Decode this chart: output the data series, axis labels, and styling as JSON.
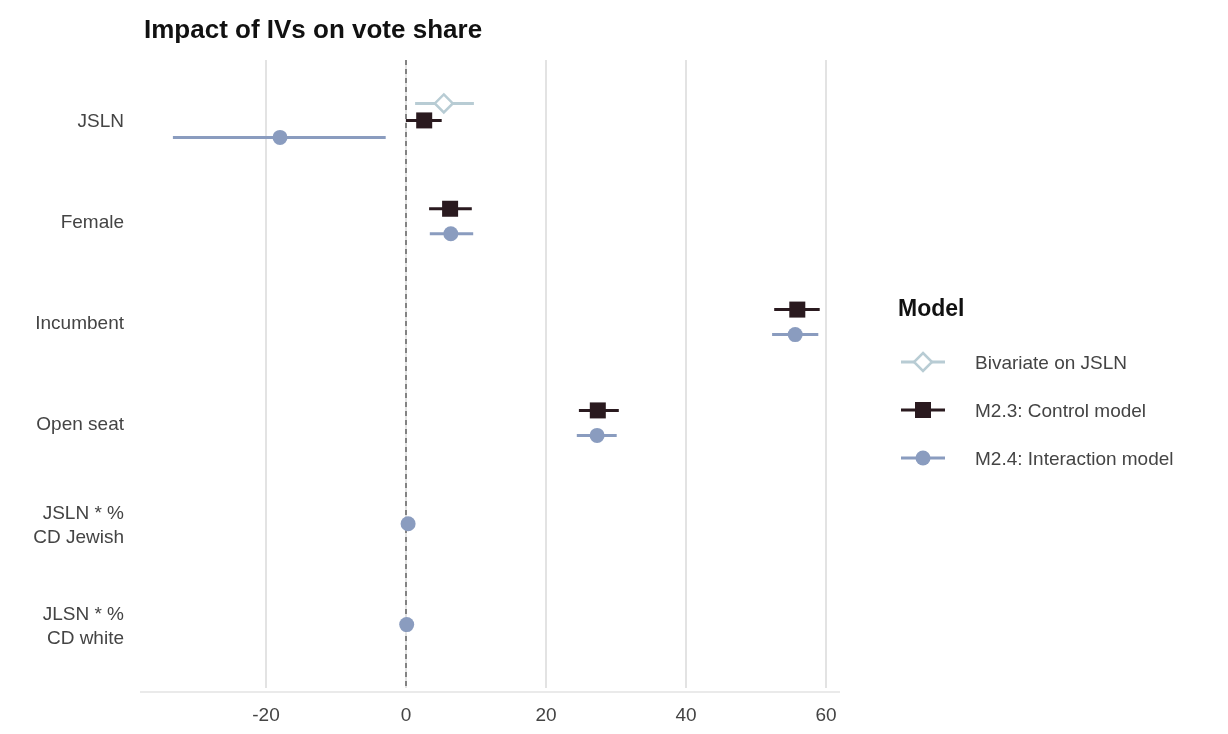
{
  "chart_data": {
    "type": "scatter",
    "title": "Impact of IVs on vote share",
    "orientation": "horizontal",
    "categories": [
      "JSLN",
      "Female",
      "Incumbent",
      "Open seat",
      "JSLN * % CD Jewish",
      "JLSN * % CD white"
    ],
    "series": [
      {
        "name": "Bivariate on JSLN",
        "color": "#b8ccd4",
        "marker": "diamond",
        "values": [
          5.4,
          null,
          null,
          null,
          null,
          null
        ],
        "errors": [
          [
            1.3,
            9.7
          ],
          null,
          null,
          null,
          null,
          null
        ]
      },
      {
        "name": "M2.3: Control model",
        "color": "#2a1a1f",
        "marker": "square",
        "values": [
          2.6,
          6.3,
          55.9,
          27.4,
          null,
          null
        ],
        "errors": [
          [
            0,
            5.1
          ],
          [
            3.3,
            9.4
          ],
          [
            52.6,
            59.1
          ],
          [
            24.7,
            30.4
          ],
          null,
          null
        ]
      },
      {
        "name": "M2.4: Interaction model",
        "color": "#8a9cbf",
        "marker": "circle",
        "values": [
          -18,
          6.4,
          55.6,
          27.3,
          0.3,
          0.1
        ],
        "errors": [
          [
            -33.3,
            -2.9
          ],
          [
            3.4,
            9.6
          ],
          [
            52.3,
            58.9
          ],
          [
            24.4,
            30.1
          ],
          null,
          null
        ]
      }
    ],
    "xlim": [
      -38,
      62
    ],
    "xticks": [
      -20,
      0,
      20,
      40,
      60
    ],
    "grid": "x",
    "ref_lines": [
      {
        "axis": "x",
        "value": 0,
        "line_style": "dashed",
        "color": "#444444"
      }
    ],
    "legend": "right",
    "legend_title": "Model"
  }
}
